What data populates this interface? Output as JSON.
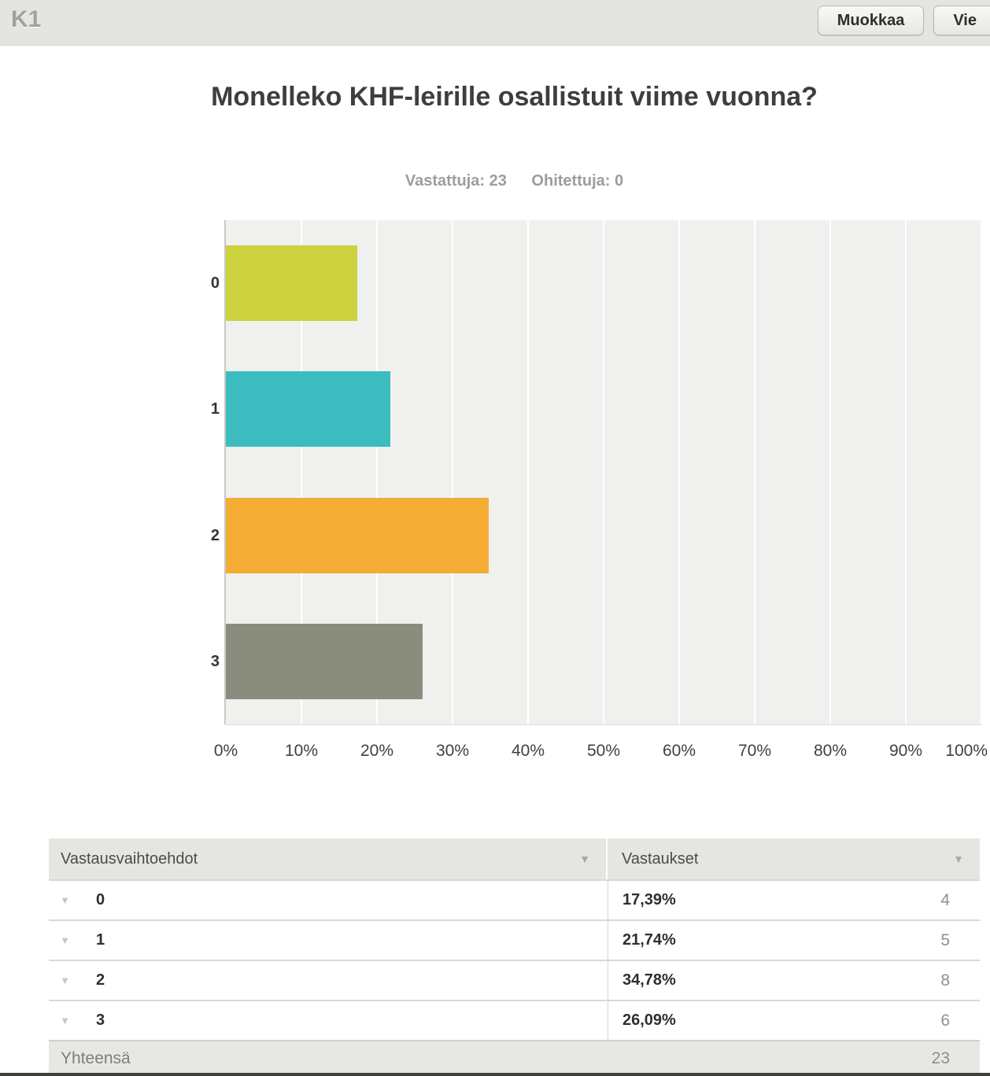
{
  "header": {
    "question_label": "K1",
    "edit_button": "Muokkaa",
    "export_button": "Vie"
  },
  "question": {
    "title": "Monelleko KHF-leirille osallistuit viime vuonna?",
    "answered_label": "Vastattuja:",
    "answered_count": "23",
    "skipped_label": "Ohitettuja:",
    "skipped_count": "0"
  },
  "chart_data": {
    "type": "bar",
    "orientation": "horizontal",
    "title": "Monelleko KHF-leirille osallistuit viime vuonna?",
    "categories": [
      "0",
      "1",
      "2",
      "3"
    ],
    "values": [
      17.39,
      21.74,
      34.78,
      26.09
    ],
    "counts": [
      4,
      5,
      8,
      6
    ],
    "bar_colors": [
      "#cbd23d",
      "#3cbcbe",
      "#f4ac35",
      "#8a8c7d"
    ],
    "xlabel_ticks": [
      "0%",
      "10%",
      "20%",
      "30%",
      "40%",
      "50%",
      "60%",
      "70%",
      "80%",
      "90%",
      "100%"
    ],
    "xlim": [
      0,
      100
    ],
    "grid": true,
    "plot_background": "#f0f0ef",
    "legend": "none"
  },
  "table": {
    "col1_header": "Vastausvaihtoehdot",
    "col2_header": "Vastaukset",
    "rows": [
      {
        "label": "0",
        "percent": "17,39%",
        "count": "4"
      },
      {
        "label": "1",
        "percent": "21,74%",
        "count": "5"
      },
      {
        "label": "2",
        "percent": "34,78%",
        "count": "8"
      },
      {
        "label": "3",
        "percent": "26,09%",
        "count": "6"
      }
    ],
    "footer_label": "Yhteensä",
    "footer_total": "23"
  }
}
